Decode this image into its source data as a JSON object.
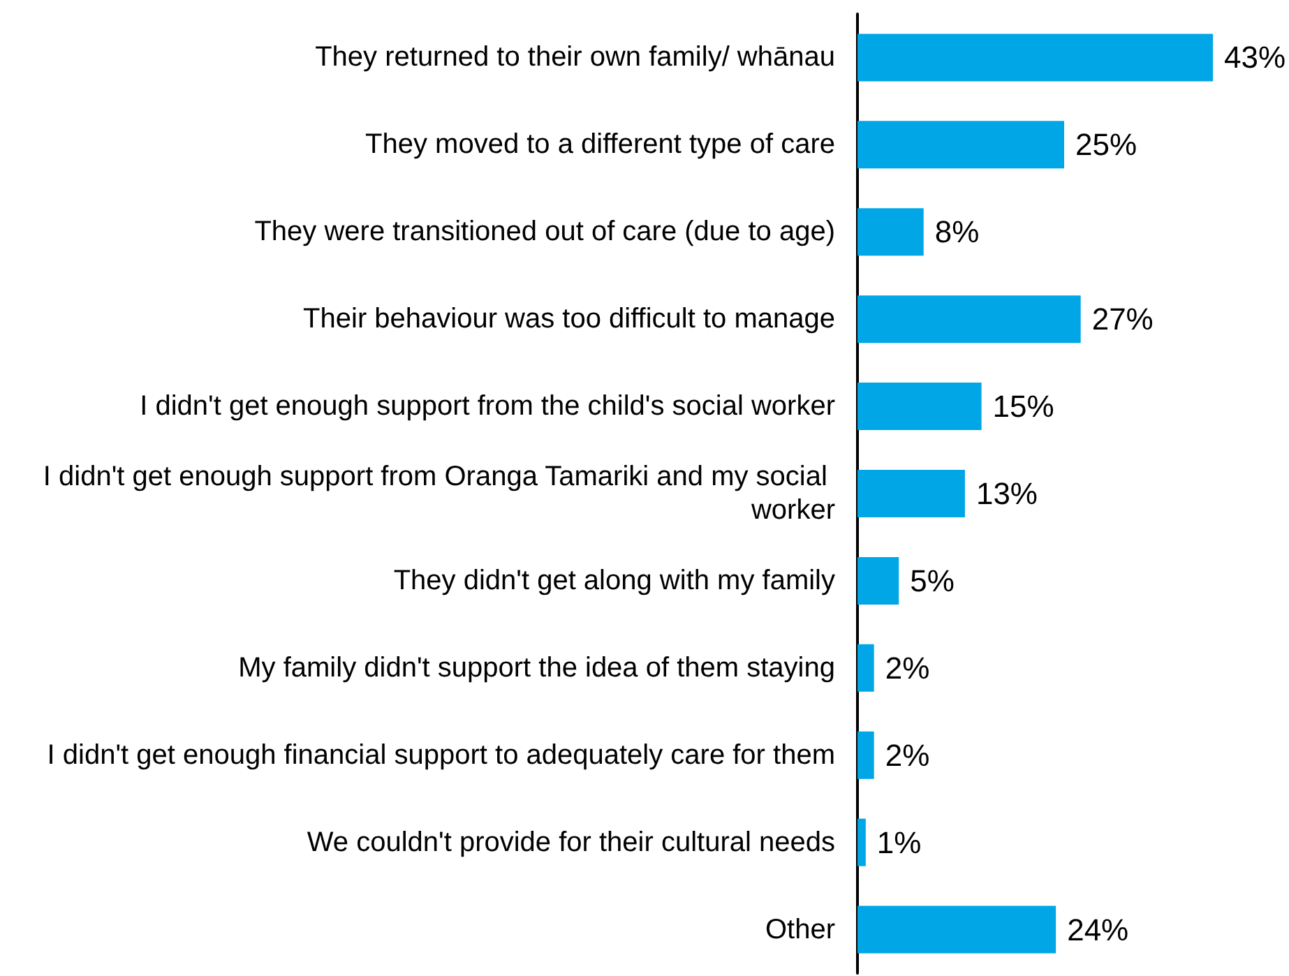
{
  "chart_data": {
    "type": "bar",
    "orientation": "horizontal",
    "categories": [
      "They returned to their own family/ whānau",
      "They moved to a different type of care",
      "They were transitioned out of care (due to age)",
      "Their behaviour was too difficult to manage",
      "I didn't get enough support from the child's social worker",
      "I didn't get enough support from Oranga Tamariki and my social worker",
      "They didn't get along with my family",
      "My family didn't support the idea of them staying",
      "I didn't get enough financial support to adequately care for them",
      "We couldn't provide for their cultural needs",
      "Other"
    ],
    "values": [
      43,
      25,
      8,
      27,
      15,
      13,
      5,
      2,
      2,
      1,
      24
    ],
    "value_labels": [
      "43%",
      "25%",
      "8%",
      "27%",
      "15%",
      "13%",
      "5%",
      "2%",
      "2%",
      "1%",
      "24%"
    ],
    "color": "#00a6e6",
    "tick_labels": "y",
    "grid": false
  }
}
